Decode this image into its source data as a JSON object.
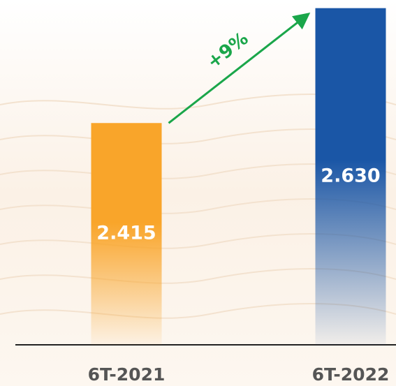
{
  "chart_data": {
    "type": "bar",
    "categories": [
      "6T-2021",
      "6T-2022"
    ],
    "values": [
      2.415,
      2.63
    ],
    "value_labels": [
      "2.415",
      "2.630"
    ],
    "colors": [
      "#f9a52a",
      "#1a56a6"
    ],
    "ylim": [
      2.0,
      2.64
    ],
    "annotation": "+9%",
    "annotation_color": "#1aa64a"
  }
}
